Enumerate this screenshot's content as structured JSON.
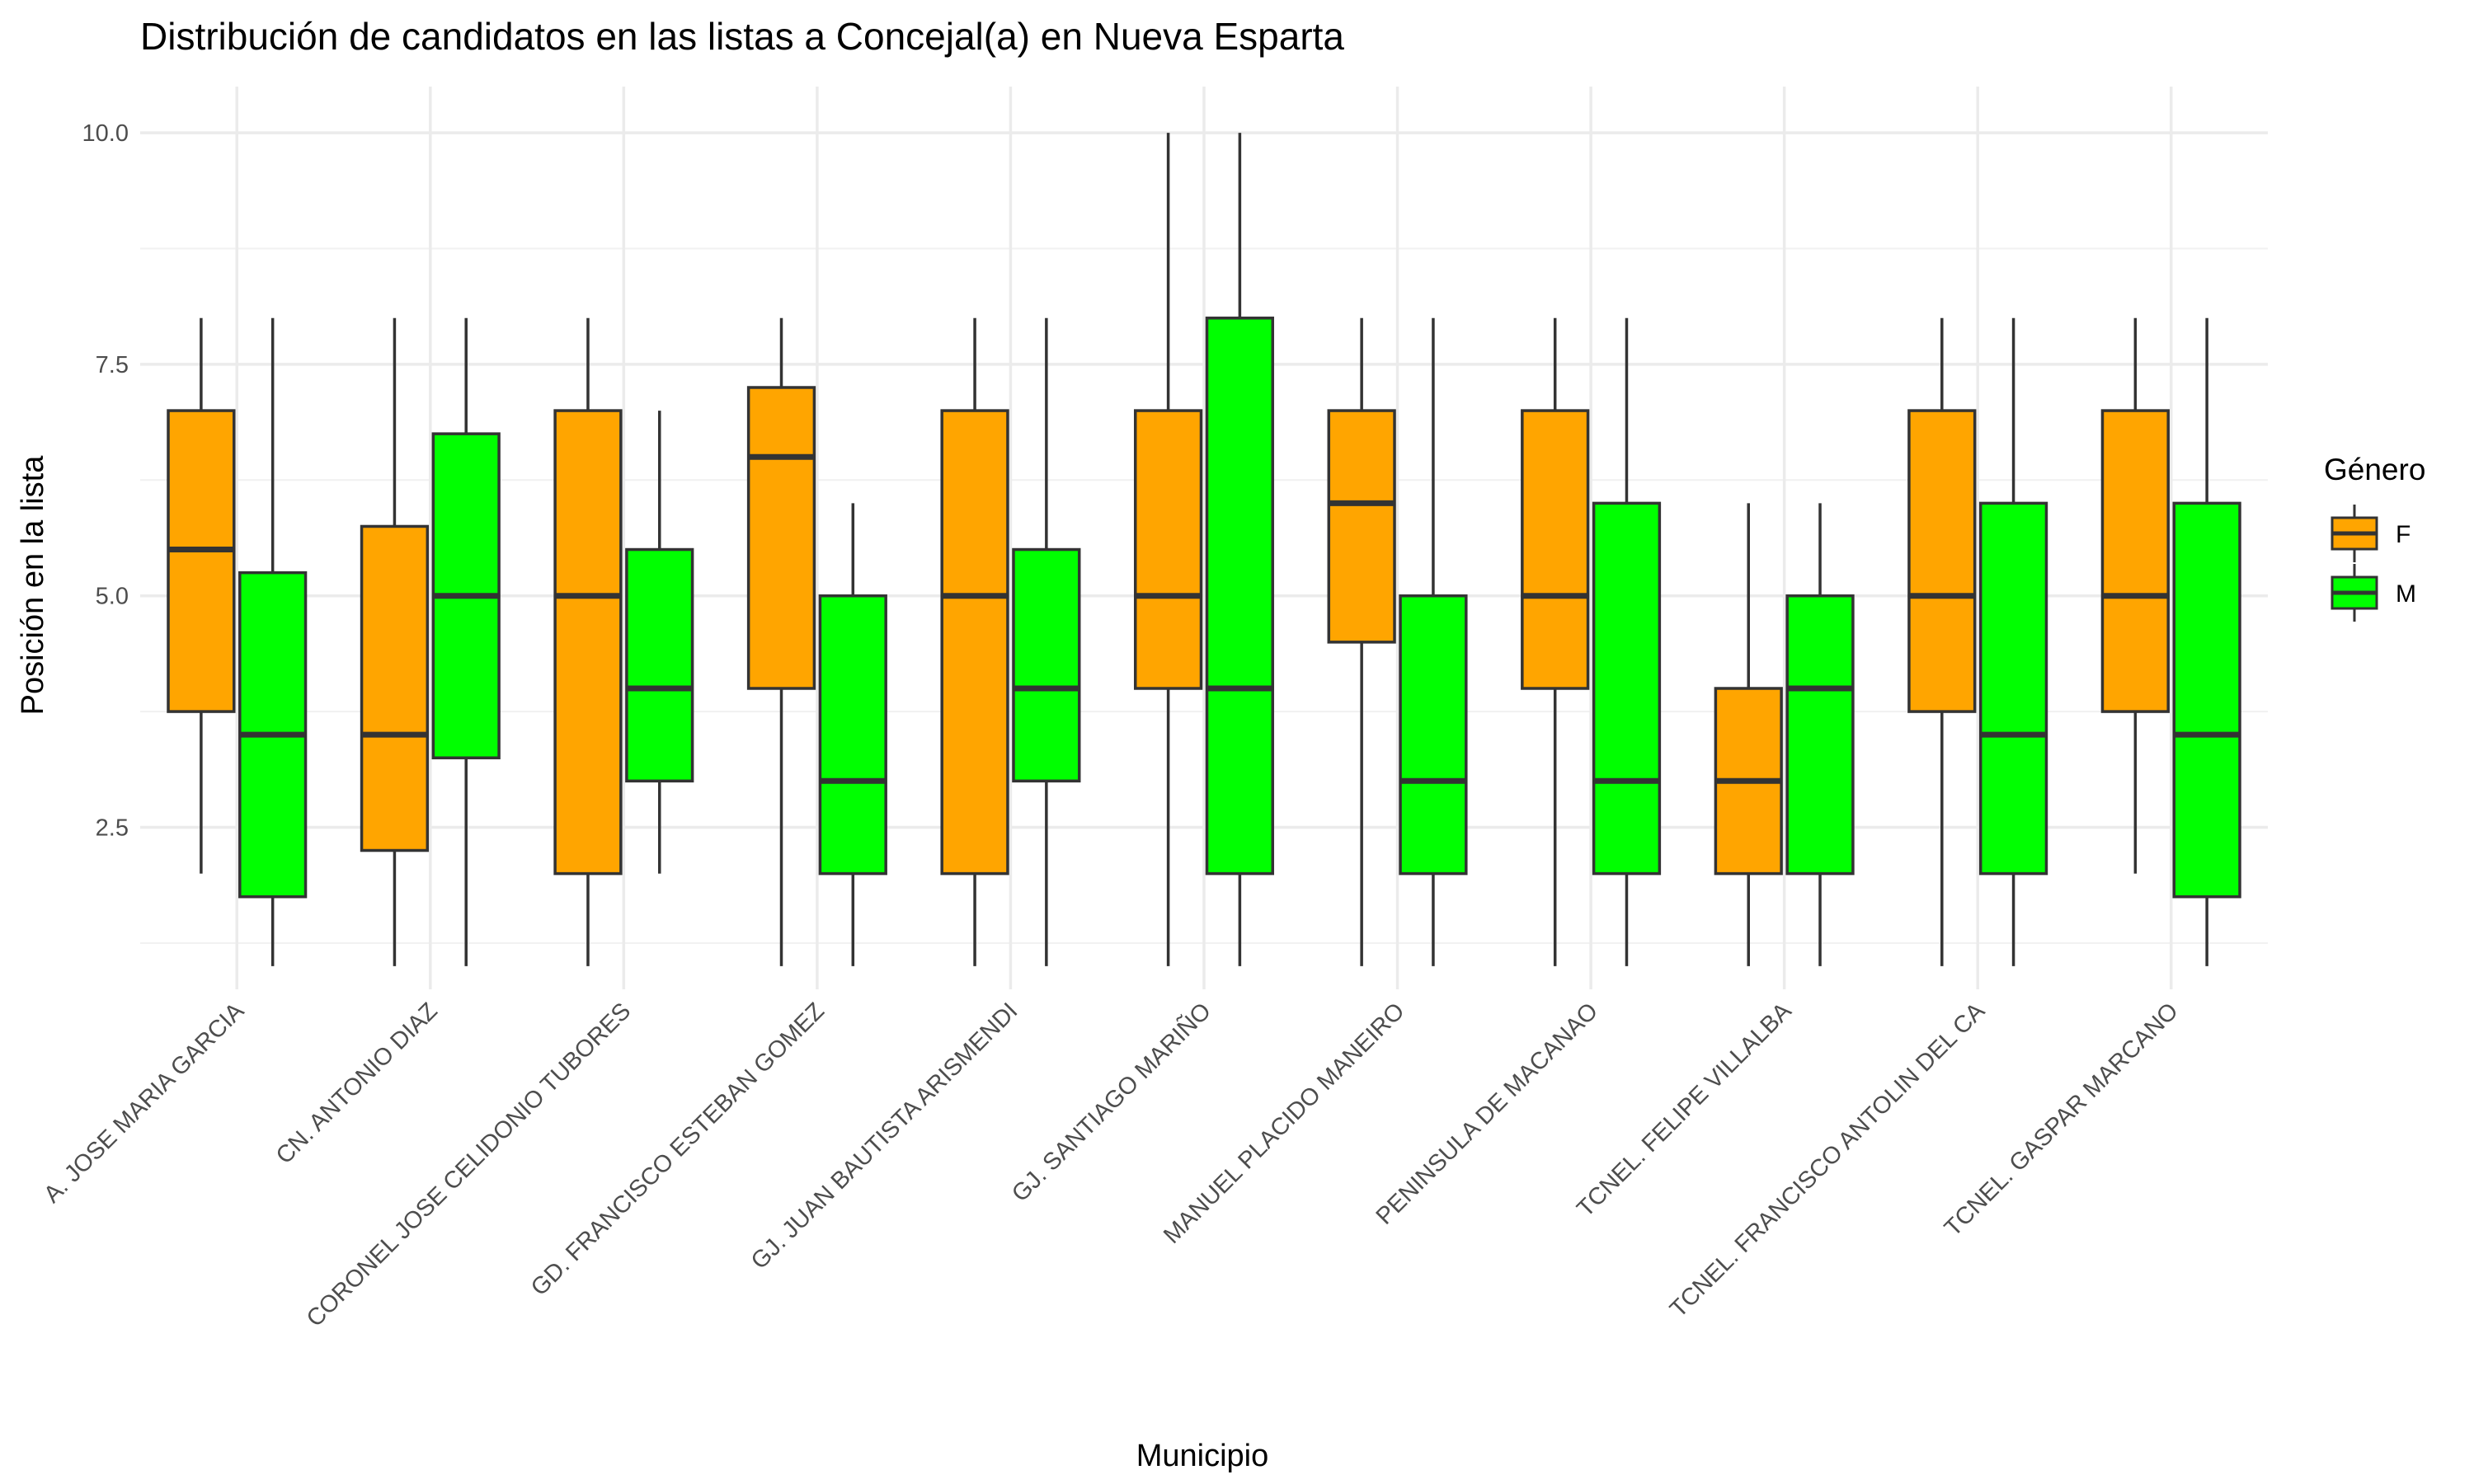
{
  "chart_data": {
    "type": "boxplot",
    "title": "Distribución de candidatos en las listas a Concejal(a) en Nueva Esparta",
    "xlabel": "Municipio",
    "ylabel": "Posición en la lista",
    "ylim": [
      0.75,
      10.5
    ],
    "yticks": [
      2.5,
      5.0,
      7.5,
      10.0
    ],
    "ytick_labels": [
      "2.5",
      "5.0",
      "7.5",
      "10.0"
    ],
    "grid": true,
    "legend": {
      "title": "Género",
      "placement": "right",
      "entries": [
        {
          "label": "F",
          "color": "#FFA500"
        },
        {
          "label": "M",
          "color": "#00FF00"
        }
      ]
    },
    "categories": [
      "A. JOSE MARIA GARCIA",
      "CN. ANTONIO DIAZ",
      "CORONEL JOSE CELIDONIO TUBORES",
      "GD. FRANCISCO ESTEBAN GOMEZ",
      "GJ. JUAN BAUTISTA ARISMENDI",
      "GJ. SANTIAGO MARIÑO",
      "MANUEL PLACIDO MANEIRO",
      "PENINSULA DE MACANAO",
      "TCNEL. FELIPE VILLALBA",
      "TCNEL. FRANCISCO ANTOLIN DEL CA",
      "TCNEL. GASPAR MARCANO"
    ],
    "series": [
      {
        "name": "F",
        "color": "#FFA500",
        "boxes": [
          {
            "min": 2,
            "q1": 3.75,
            "median": 5.5,
            "q3": 7,
            "max": 8
          },
          {
            "min": 1,
            "q1": 2.25,
            "median": 3.5,
            "q3": 5.75,
            "max": 8
          },
          {
            "min": 1,
            "q1": 2,
            "median": 5,
            "q3": 7,
            "max": 8
          },
          {
            "min": 1,
            "q1": 4,
            "median": 6.5,
            "q3": 7.25,
            "max": 8
          },
          {
            "min": 1,
            "q1": 2,
            "median": 5,
            "q3": 7,
            "max": 8
          },
          {
            "min": 1,
            "q1": 4,
            "median": 5,
            "q3": 7,
            "max": 10
          },
          {
            "min": 1,
            "q1": 4.5,
            "median": 6,
            "q3": 7,
            "max": 8
          },
          {
            "min": 1,
            "q1": 4,
            "median": 5,
            "q3": 7,
            "max": 8
          },
          {
            "min": 1,
            "q1": 2,
            "median": 3,
            "q3": 4,
            "max": 6
          },
          {
            "min": 1,
            "q1": 3.75,
            "median": 5,
            "q3": 7,
            "max": 8
          },
          {
            "min": 2,
            "q1": 3.75,
            "median": 5,
            "q3": 7,
            "max": 8
          }
        ]
      },
      {
        "name": "M",
        "color": "#00FF00",
        "boxes": [
          {
            "min": 1,
            "q1": 1.75,
            "median": 3.5,
            "q3": 5.25,
            "max": 8
          },
          {
            "min": 1,
            "q1": 3.25,
            "median": 5,
            "q3": 6.75,
            "max": 8
          },
          {
            "min": 2,
            "q1": 3,
            "median": 4,
            "q3": 5.5,
            "max": 7
          },
          {
            "min": 1,
            "q1": 2,
            "median": 3,
            "q3": 5,
            "max": 6
          },
          {
            "min": 1,
            "q1": 3,
            "median": 4,
            "q3": 5.5,
            "max": 8
          },
          {
            "min": 1,
            "q1": 2,
            "median": 4,
            "q3": 8,
            "max": 10
          },
          {
            "min": 1,
            "q1": 2,
            "median": 3,
            "q3": 5,
            "max": 8
          },
          {
            "min": 1,
            "q1": 2,
            "median": 3,
            "q3": 6,
            "max": 8
          },
          {
            "min": 1,
            "q1": 2,
            "median": 4,
            "q3": 5,
            "max": 6
          },
          {
            "min": 1,
            "q1": 2,
            "median": 3.5,
            "q3": 6,
            "max": 8
          },
          {
            "min": 1,
            "q1": 1.75,
            "median": 3.5,
            "q3": 6,
            "max": 8
          }
        ]
      }
    ]
  }
}
